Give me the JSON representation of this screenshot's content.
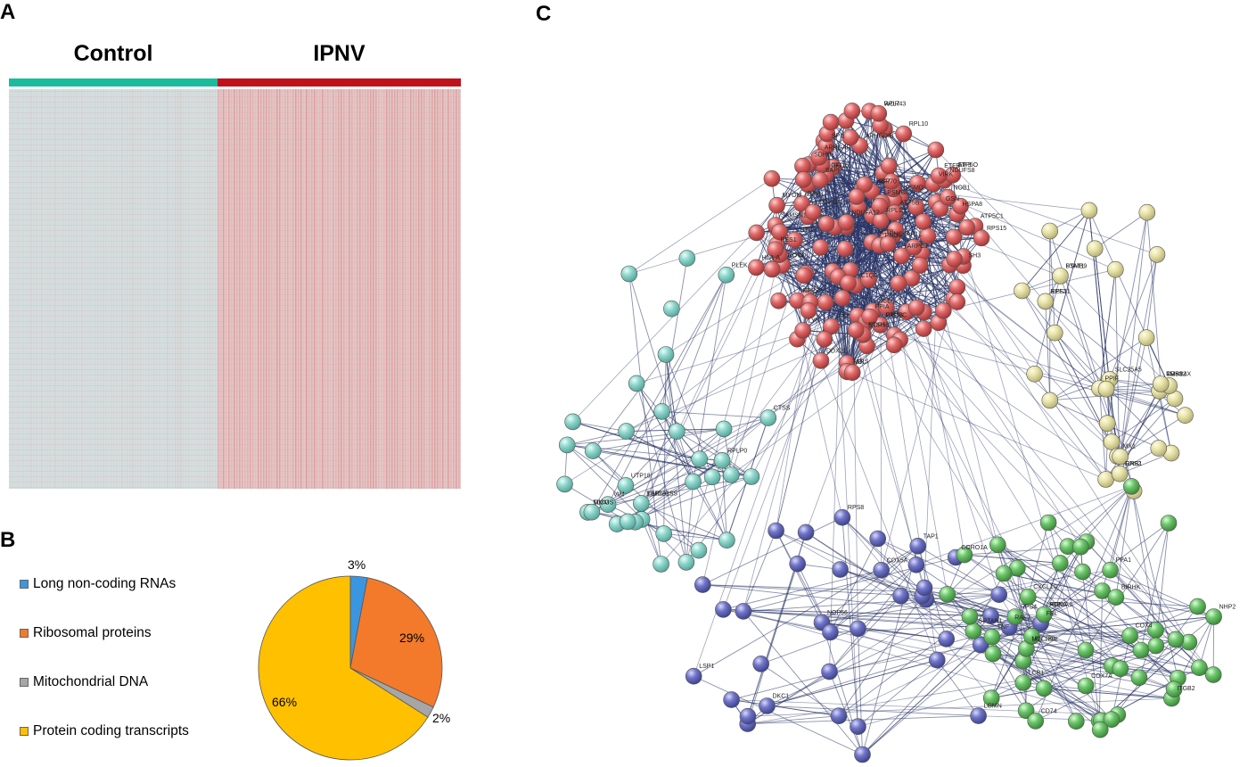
{
  "panels": {
    "a": "A",
    "b": "B",
    "c": "C"
  },
  "heatmap": {
    "groups": [
      {
        "label": "Control",
        "color": "#1abc9c"
      },
      {
        "label": "IPNV",
        "color": "#c0121b"
      }
    ]
  },
  "pie": {
    "legend": [
      {
        "label": "Long non-coding RNAs",
        "color": "#3a96e0"
      },
      {
        "label": "Ribosomal proteins",
        "color": "#f37a2a"
      },
      {
        "label": "Mitochondrial DNA",
        "color": "#a6a6a6"
      },
      {
        "label": "Protein coding transcripts",
        "color": "#ffc000"
      }
    ],
    "labels": [
      "3%",
      "29%",
      "2%",
      "66%"
    ]
  },
  "chart_data": {
    "type": "pie",
    "categories": [
      "Long non-coding RNAs",
      "Ribosomal proteins",
      "Mitochondrial DNA",
      "Protein coding transcripts"
    ],
    "values": [
      3,
      29,
      2,
      66
    ]
  },
  "network": {
    "cluster_colors": {
      "red": "#e06a6a",
      "yellow": "#e8e4a8",
      "cyan": "#8fd6cc",
      "blue": "#6f74c6",
      "green": "#6cc46a"
    },
    "node_labels": [
      "ITH1",
      "NOP56",
      "ETSH",
      "BIRHK",
      "FBL",
      "SAPI",
      "RPS2",
      "EIF3",
      "RPL10",
      "RPS4",
      "PSMD",
      "HSPA8",
      "GNB1",
      "EEF1A1",
      "RPL13",
      "PPA1",
      "RPS11",
      "RPS15",
      "NHP2",
      "CCT4",
      "PCNA",
      "RPL7",
      "RPS8",
      "RPLP0",
      "TIMM",
      "EEF2",
      "ATP5A1",
      "ATP5B",
      "SLC25A5",
      "ATP5O",
      "ATP5C1",
      "COX5A",
      "NDUFS8",
      "COX6B1",
      "UQCRC1",
      "SDHB",
      "COX4",
      "CYCS",
      "NDUFA12",
      "ETFB",
      "COX7A",
      "PPIF",
      "PPIA",
      "MICOS",
      "NOL",
      "VIRK",
      "NOVA",
      "DDX21",
      "RAF1",
      "TARS",
      "RPP38",
      "NOB1",
      "GFI1",
      "WDR43",
      "NCL",
      "UTP18",
      "NOP58",
      "PNO1",
      "RRP12",
      "DKC1",
      "PES1",
      "TIMELESS",
      "MYOM",
      "IFNL",
      "HSP70",
      "STAT1",
      "TNF",
      "CD74",
      "IRF7",
      "MX1",
      "ISG15",
      "HLA-A",
      "B2M",
      "CTSS",
      "LGMN",
      "TAP1",
      "PSMB8",
      "PSMB9",
      "CXCL10",
      "LYN",
      "PLEK",
      "ITGB2",
      "C1QA",
      "CD53",
      "HCK",
      "SPI1",
      "LCP1",
      "PTPRC",
      "ACTB",
      "MYL12B",
      "ARPC3",
      "ARHGDIB",
      "CORO1A",
      "VIM",
      "TMSB4X",
      "LSP1",
      "SAMSN1",
      "SH3",
      "SPTAN1",
      "GSN",
      "NCKAP1L",
      "ARHGAP"
    ]
  }
}
